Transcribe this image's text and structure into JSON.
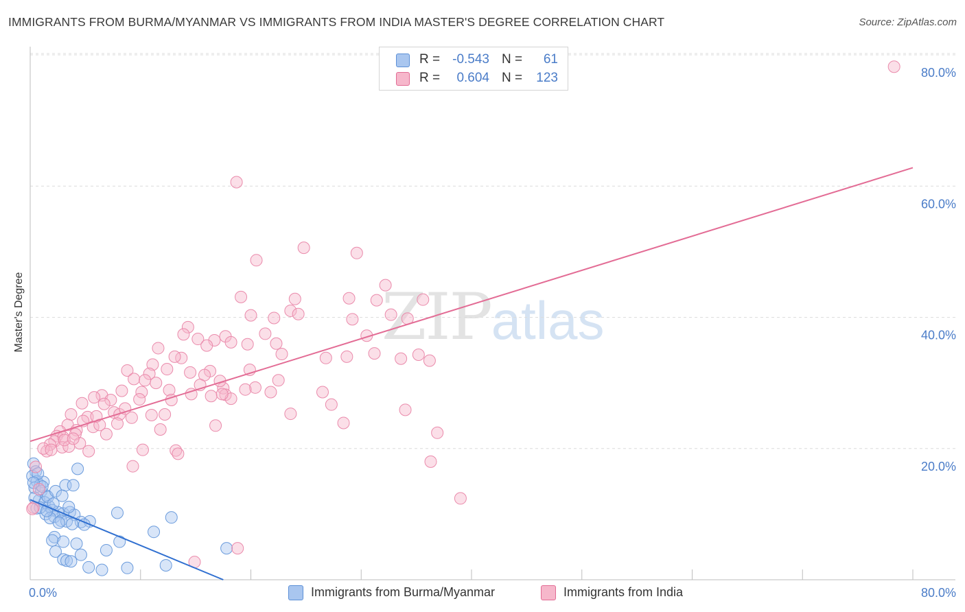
{
  "header": {
    "title": "IMMIGRANTS FROM BURMA/MYANMAR VS IMMIGRANTS FROM INDIA MASTER'S DEGREE CORRELATION CHART",
    "source": "Source: ZipAtlas.com"
  },
  "watermark": {
    "zip": "ZIP",
    "atlas": "atlas"
  },
  "stats": [
    {
      "r_label": "R =",
      "r_value": "-0.543",
      "n_label": "N =",
      "n_value": "61",
      "color": "#5b8fd6",
      "fill": "#a9c6ef"
    },
    {
      "r_label": "R =",
      "r_value": "0.604",
      "n_label": "N =",
      "n_value": "123",
      "color": "#e26b94",
      "fill": "#f6b7cb"
    }
  ],
  "legend": [
    {
      "label": "Immigrants from Burma/Myanmar",
      "color": "#a9c6ef",
      "border": "#5b8fd6"
    },
    {
      "label": "Immigrants from India",
      "color": "#f6b7cb",
      "border": "#e26b94"
    }
  ],
  "colors": {
    "axis_tick_label": "#4a7cc8",
    "grid": "#dcdcdc",
    "burma_point": "#6a9bdc",
    "india_point": "#ea8aab",
    "burma_line": "#2f6fd0",
    "india_line": "#e36c95"
  },
  "chart_data": {
    "type": "scatter",
    "title": "IMMIGRANTS FROM BURMA/MYANMAR VS IMMIGRANTS FROM INDIA MASTER'S DEGREE CORRELATION CHART",
    "xlabel": "",
    "ylabel": "Master's Degree",
    "xlim": [
      0,
      80
    ],
    "ylim": [
      0,
      80
    ],
    "x_ticks": [
      {
        "value": 0,
        "label": "0.0%"
      },
      {
        "value": 80,
        "label": "80.0%"
      }
    ],
    "y_ticks": [
      {
        "value": 20,
        "label": "20.0%"
      },
      {
        "value": 40,
        "label": "40.0%"
      },
      {
        "value": 60,
        "label": "60.0%"
      },
      {
        "value": 80,
        "label": "80.0%"
      }
    ],
    "grid": true,
    "series": [
      {
        "name": "Immigrants from Burma/Myanmar",
        "trend": {
          "x": [
            0,
            17.5
          ],
          "y": [
            12.2,
            0
          ]
        },
        "points": [
          [
            0.3,
            17.7
          ],
          [
            0.5,
            16.5
          ],
          [
            0.2,
            15.8
          ],
          [
            0.6,
            15.0
          ],
          [
            0.9,
            14.4
          ],
          [
            1.2,
            14.9
          ],
          [
            0.4,
            14.0
          ],
          [
            1.0,
            13.5
          ],
          [
            1.5,
            12.8
          ],
          [
            0.8,
            12.1
          ],
          [
            1.3,
            11.8
          ],
          [
            1.7,
            11.2
          ],
          [
            0.6,
            10.9
          ],
          [
            2.0,
            10.6
          ],
          [
            2.5,
            10.3
          ],
          [
            1.4,
            10.0
          ],
          [
            3.0,
            10.1
          ],
          [
            3.6,
            10.3
          ],
          [
            4.0,
            9.9
          ],
          [
            2.2,
            9.6
          ],
          [
            1.8,
            9.4
          ],
          [
            2.8,
            9.0
          ],
          [
            3.3,
            8.9
          ],
          [
            4.6,
            8.8
          ],
          [
            5.4,
            8.9
          ],
          [
            3.8,
            8.5
          ],
          [
            4.9,
            8.4
          ],
          [
            2.6,
            8.7
          ],
          [
            1.6,
            12.6
          ],
          [
            2.3,
            13.5
          ],
          [
            3.2,
            14.4
          ],
          [
            3.9,
            14.4
          ],
          [
            4.3,
            16.9
          ],
          [
            2.9,
            12.8
          ],
          [
            0.7,
            16.2
          ],
          [
            1.1,
            14.2
          ],
          [
            7.9,
            10.2
          ],
          [
            12.8,
            9.5
          ],
          [
            11.2,
            7.3
          ],
          [
            2.2,
            6.5
          ],
          [
            2.0,
            6.0
          ],
          [
            3.0,
            5.8
          ],
          [
            4.2,
            5.5
          ],
          [
            2.3,
            4.3
          ],
          [
            4.6,
            3.8
          ],
          [
            6.9,
            4.5
          ],
          [
            8.1,
            5.8
          ],
          [
            3.0,
            3.1
          ],
          [
            3.3,
            2.9
          ],
          [
            3.7,
            2.8
          ],
          [
            5.3,
            1.9
          ],
          [
            6.5,
            1.5
          ],
          [
            8.8,
            1.8
          ],
          [
            12.3,
            2.2
          ],
          [
            17.8,
            4.8
          ],
          [
            0.4,
            12.5
          ],
          [
            0.9,
            11.0
          ],
          [
            1.5,
            10.5
          ],
          [
            2.1,
            11.6
          ],
          [
            3.5,
            11.1
          ],
          [
            0.3,
            14.8
          ]
        ]
      },
      {
        "name": "Immigrants from India",
        "trend": {
          "x": [
            0,
            80
          ],
          "y": [
            21.1,
            62.8
          ]
        },
        "points": [
          [
            78.3,
            78.2
          ],
          [
            18.7,
            60.6
          ],
          [
            24.8,
            50.6
          ],
          [
            29.6,
            49.8
          ],
          [
            20.5,
            48.7
          ],
          [
            32.2,
            44.9
          ],
          [
            35.6,
            42.7
          ],
          [
            28.9,
            42.9
          ],
          [
            22.1,
            39.9
          ],
          [
            31.4,
            42.6
          ],
          [
            19.1,
            43.1
          ],
          [
            24.0,
            42.8
          ],
          [
            23.6,
            41.0
          ],
          [
            24.3,
            40.5
          ],
          [
            29.2,
            39.7
          ],
          [
            34.2,
            39.8
          ],
          [
            20.0,
            40.3
          ],
          [
            14.3,
            38.5
          ],
          [
            13.9,
            37.4
          ],
          [
            21.3,
            37.5
          ],
          [
            15.2,
            36.7
          ],
          [
            16.7,
            36.5
          ],
          [
            17.7,
            37.1
          ],
          [
            18.2,
            36.2
          ],
          [
            11.6,
            35.3
          ],
          [
            19.7,
            35.9
          ],
          [
            16.0,
            35.7
          ],
          [
            22.8,
            34.4
          ],
          [
            28.7,
            34.0
          ],
          [
            31.2,
            34.5
          ],
          [
            33.6,
            33.7
          ],
          [
            35.2,
            34.3
          ],
          [
            36.2,
            33.4
          ],
          [
            13.7,
            33.8
          ],
          [
            11.1,
            32.8
          ],
          [
            8.8,
            31.9
          ],
          [
            10.8,
            31.4
          ],
          [
            12.4,
            32.1
          ],
          [
            14.5,
            31.6
          ],
          [
            16.3,
            31.8
          ],
          [
            15.8,
            31.2
          ],
          [
            9.4,
            30.6
          ],
          [
            10.4,
            30.4
          ],
          [
            11.4,
            30.0
          ],
          [
            22.5,
            30.4
          ],
          [
            20.4,
            29.3
          ],
          [
            15.4,
            29.7
          ],
          [
            17.5,
            29.2
          ],
          [
            19.5,
            29.0
          ],
          [
            12.6,
            28.9
          ],
          [
            8.3,
            28.8
          ],
          [
            10.1,
            28.6
          ],
          [
            14.6,
            28.3
          ],
          [
            16.4,
            28.0
          ],
          [
            17.7,
            28.2
          ],
          [
            21.8,
            28.6
          ],
          [
            26.5,
            28.6
          ],
          [
            6.5,
            28.1
          ],
          [
            7.3,
            27.4
          ],
          [
            5.8,
            27.8
          ],
          [
            4.7,
            26.9
          ],
          [
            6.7,
            26.8
          ],
          [
            9.9,
            27.5
          ],
          [
            12.8,
            27.4
          ],
          [
            18.2,
            27.6
          ],
          [
            27.3,
            26.7
          ],
          [
            7.6,
            25.5
          ],
          [
            8.1,
            25.2
          ],
          [
            9.2,
            24.7
          ],
          [
            11.0,
            25.1
          ],
          [
            5.2,
            24.8
          ],
          [
            3.7,
            25.2
          ],
          [
            4.8,
            24.2
          ],
          [
            3.4,
            23.6
          ],
          [
            5.7,
            23.3
          ],
          [
            6.3,
            23.6
          ],
          [
            7.9,
            23.8
          ],
          [
            4.2,
            22.8
          ],
          [
            2.7,
            22.6
          ],
          [
            2.4,
            21.9
          ],
          [
            3.0,
            21.7
          ],
          [
            2.2,
            21.1
          ],
          [
            1.8,
            20.6
          ],
          [
            2.9,
            20.2
          ],
          [
            3.5,
            20.3
          ],
          [
            1.5,
            19.6
          ],
          [
            1.2,
            20.0
          ],
          [
            5.3,
            19.6
          ],
          [
            10.2,
            19.8
          ],
          [
            13.2,
            19.7
          ],
          [
            13.4,
            19.2
          ],
          [
            9.3,
            17.3
          ],
          [
            16.8,
            23.5
          ],
          [
            11.8,
            22.9
          ],
          [
            4.1,
            22.2
          ],
          [
            6.9,
            22.2
          ],
          [
            12.2,
            25.2
          ],
          [
            17.4,
            28.3
          ],
          [
            23.6,
            25.3
          ],
          [
            28.4,
            23.9
          ],
          [
            34.0,
            25.9
          ],
          [
            36.9,
            22.4
          ],
          [
            36.3,
            18.0
          ],
          [
            39.0,
            12.4
          ],
          [
            18.8,
            4.8
          ],
          [
            14.9,
            2.7
          ],
          [
            0.5,
            17.2
          ],
          [
            0.3,
            11.0
          ],
          [
            0.8,
            13.8
          ],
          [
            1.9,
            19.8
          ],
          [
            3.1,
            21.3
          ],
          [
            4.5,
            20.8
          ],
          [
            6.0,
            24.9
          ],
          [
            8.6,
            26.1
          ],
          [
            13.1,
            34.0
          ],
          [
            17.2,
            30.3
          ],
          [
            19.9,
            32.0
          ],
          [
            22.3,
            36.0
          ],
          [
            26.8,
            33.8
          ],
          [
            30.5,
            37.2
          ],
          [
            32.7,
            40.4
          ],
          [
            0.2,
            10.8
          ],
          [
            3.9,
            21.5
          ]
        ]
      }
    ]
  }
}
